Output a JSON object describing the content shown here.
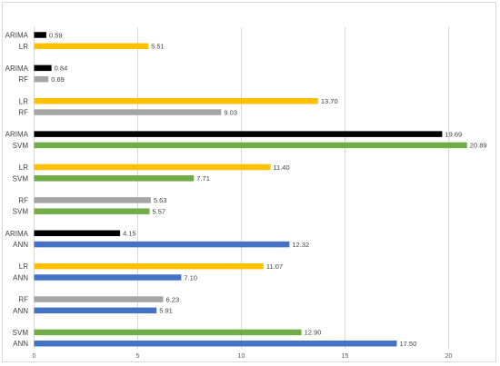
{
  "chart_data": {
    "type": "bar",
    "orientation": "horizontal",
    "xlim": [
      0,
      21.5
    ],
    "x_ticks": [
      "0",
      "5",
      "10",
      "15",
      "20"
    ],
    "x_tick_values": [
      0,
      5,
      10,
      15,
      20
    ],
    "grid": true,
    "legend": "none",
    "colors": {
      "ARIMA": "#000000",
      "LR": "#ffc000",
      "RF": "#a5a5a5",
      "SVM": "#70ad47",
      "ANN": "#4472c4"
    },
    "groups": [
      {
        "bars": [
          {
            "label": "ARIMA",
            "value": 0.59,
            "value_label": "0.59"
          },
          {
            "label": "LR",
            "value": 5.51,
            "value_label": "5.51"
          }
        ]
      },
      {
        "bars": [
          {
            "label": "ARIMA",
            "value": 0.84,
            "value_label": "0.84"
          },
          {
            "label": "RF",
            "value": 0.69,
            "value_label": "0.69"
          }
        ]
      },
      {
        "bars": [
          {
            "label": "LR",
            "value": 13.7,
            "value_label": "13.70"
          },
          {
            "label": "RF",
            "value": 9.03,
            "value_label": "9.03"
          }
        ]
      },
      {
        "bars": [
          {
            "label": "ARIMA",
            "value": 19.69,
            "value_label": "19.69"
          },
          {
            "label": "SVM",
            "value": 20.89,
            "value_label": "20.89"
          }
        ]
      },
      {
        "bars": [
          {
            "label": "LR",
            "value": 11.4,
            "value_label": "11.40"
          },
          {
            "label": "SVM",
            "value": 7.71,
            "value_label": "7.71"
          }
        ]
      },
      {
        "bars": [
          {
            "label": "RF",
            "value": 5.63,
            "value_label": "5.63"
          },
          {
            "label": "SVM",
            "value": 5.57,
            "value_label": "5.57"
          }
        ]
      },
      {
        "bars": [
          {
            "label": "ARIMA",
            "value": 4.15,
            "value_label": "4.15"
          },
          {
            "label": "ANN",
            "value": 12.32,
            "value_label": "12.32"
          }
        ]
      },
      {
        "bars": [
          {
            "label": "LR",
            "value": 11.07,
            "value_label": "11.07"
          },
          {
            "label": "ANN",
            "value": 7.1,
            "value_label": "7.10"
          }
        ]
      },
      {
        "bars": [
          {
            "label": "RF",
            "value": 6.23,
            "value_label": "6.23"
          },
          {
            "label": "ANN",
            "value": 5.91,
            "value_label": "5.91"
          }
        ]
      },
      {
        "bars": [
          {
            "label": "SVM",
            "value": 12.9,
            "value_label": "12.90"
          },
          {
            "label": "ANN",
            "value": 17.5,
            "value_label": "17.50"
          }
        ]
      }
    ]
  }
}
